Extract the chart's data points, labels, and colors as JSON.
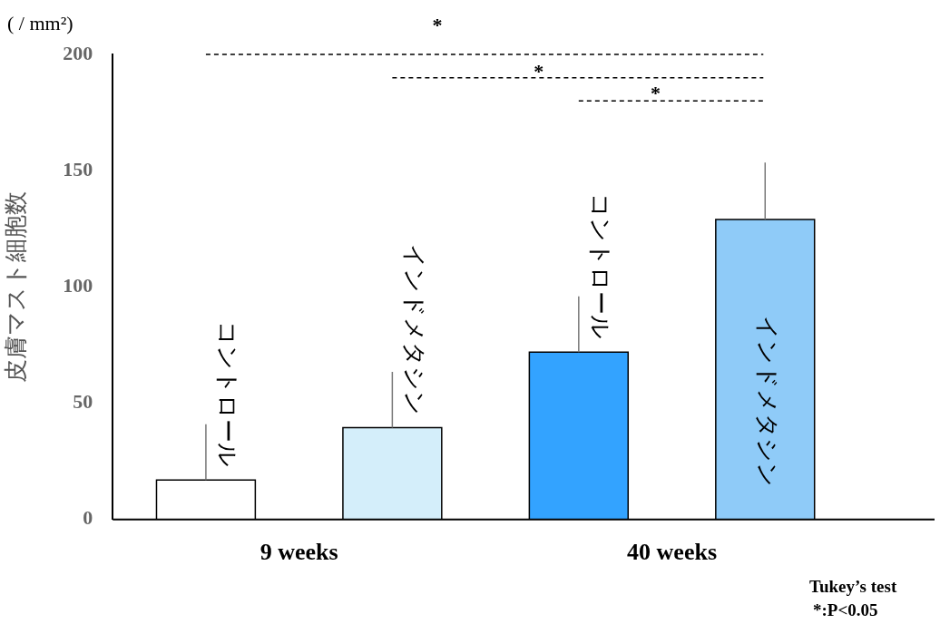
{
  "chart_data": {
    "type": "bar",
    "ylabel": "皮膚マスト細胞数",
    "categories": [
      "9 weeks",
      "40 weeks"
    ],
    "series": [
      {
        "name": "コントロール",
        "values": [
          17,
          72
        ],
        "errors": [
          24,
          24
        ],
        "colors": [
          "#ffffff",
          "#33a3ff"
        ]
      },
      {
        "name": "インドメタシン",
        "values": [
          39.5,
          129
        ],
        "errors": [
          24,
          24.5
        ],
        "colors": [
          "#d4eefa",
          "#8fcbf8"
        ]
      }
    ],
    "ylim": [
      0,
      200
    ],
    "yticks": [
      0,
      50,
      100,
      150,
      200
    ],
    "grid": false,
    "legend": false,
    "annotations": [
      "( / mm²)",
      "*",
      "*",
      "*",
      "Tukey’s test",
      "*:P<0.05"
    ]
  }
}
